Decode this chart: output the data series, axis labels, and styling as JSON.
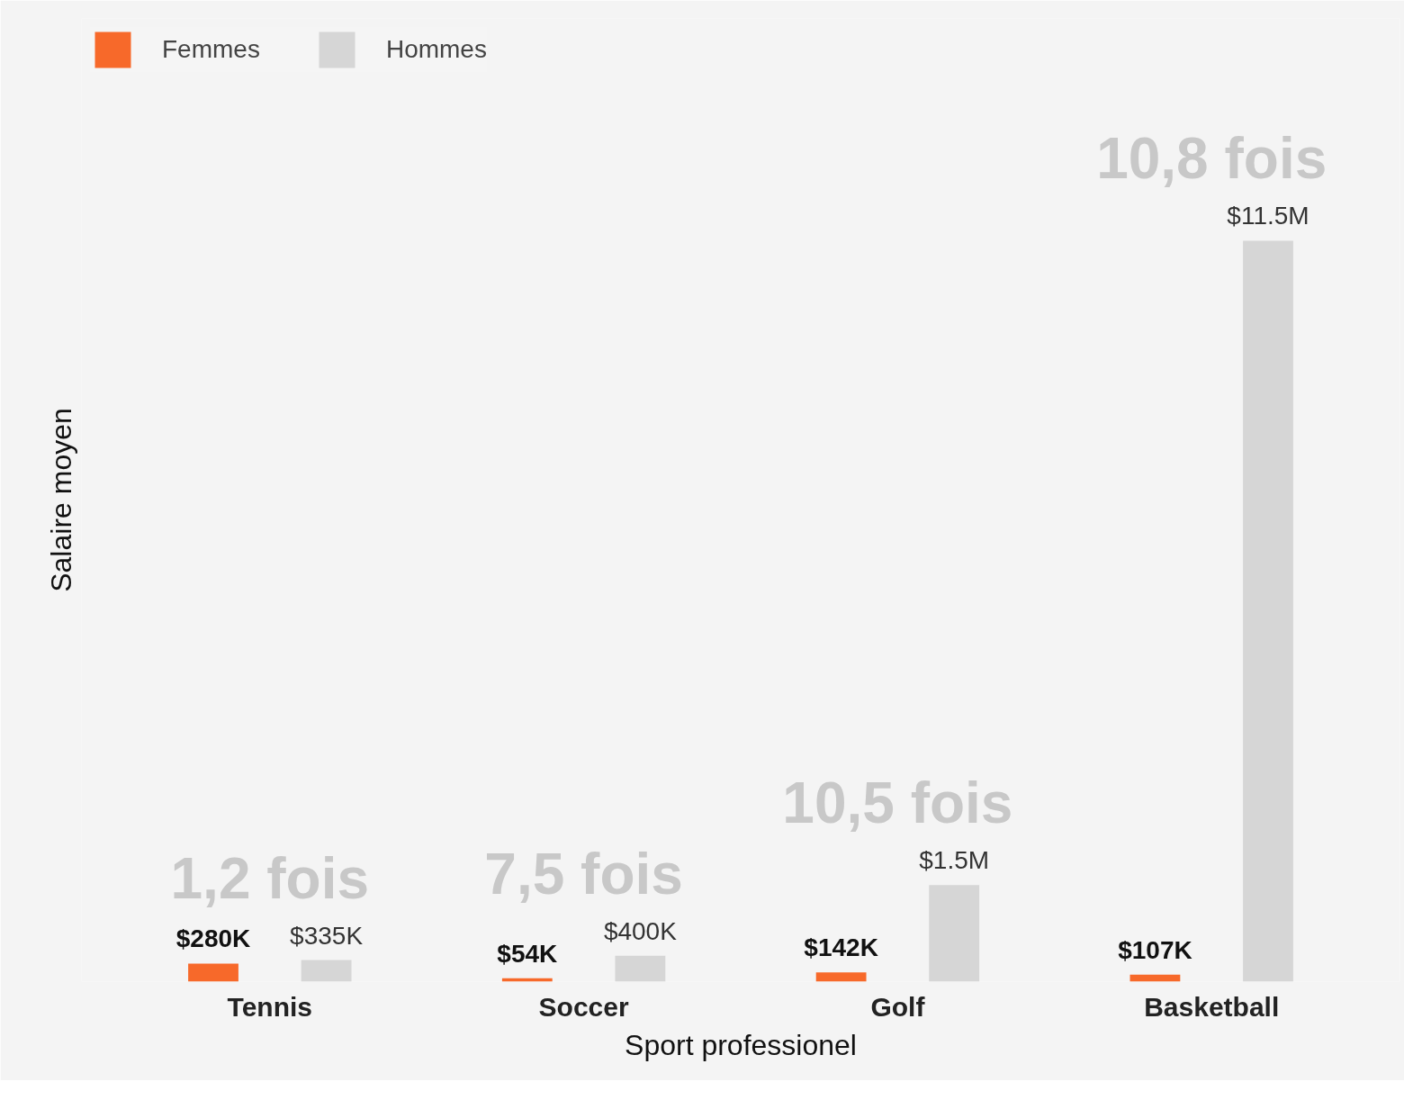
{
  "chart_data": {
    "type": "bar",
    "xlabel": "Sport professionel",
    "ylabel": "Salaire moyen",
    "categories": [
      "Tennis",
      "Soccer",
      "Golf",
      "Basketball"
    ],
    "series": [
      {
        "name": "Femmes",
        "color": "#f7692a",
        "values": [
          280000,
          54000,
          142000,
          107000
        ],
        "value_labels": [
          "$280K",
          "$54K",
          "$142K",
          "$107K"
        ]
      },
      {
        "name": "Hommes",
        "color": "#d6d6d6",
        "values": [
          335000,
          400000,
          1500000,
          11500000
        ],
        "value_labels": [
          "$335K",
          "$400K",
          "$1.5M",
          "$11.5M"
        ]
      }
    ],
    "annotations": [
      "1,2 fois",
      "7,5 fois",
      "10,5 fois",
      "10,8 fois"
    ],
    "legend": "top left",
    "grid": false,
    "tick_labels": "x"
  }
}
